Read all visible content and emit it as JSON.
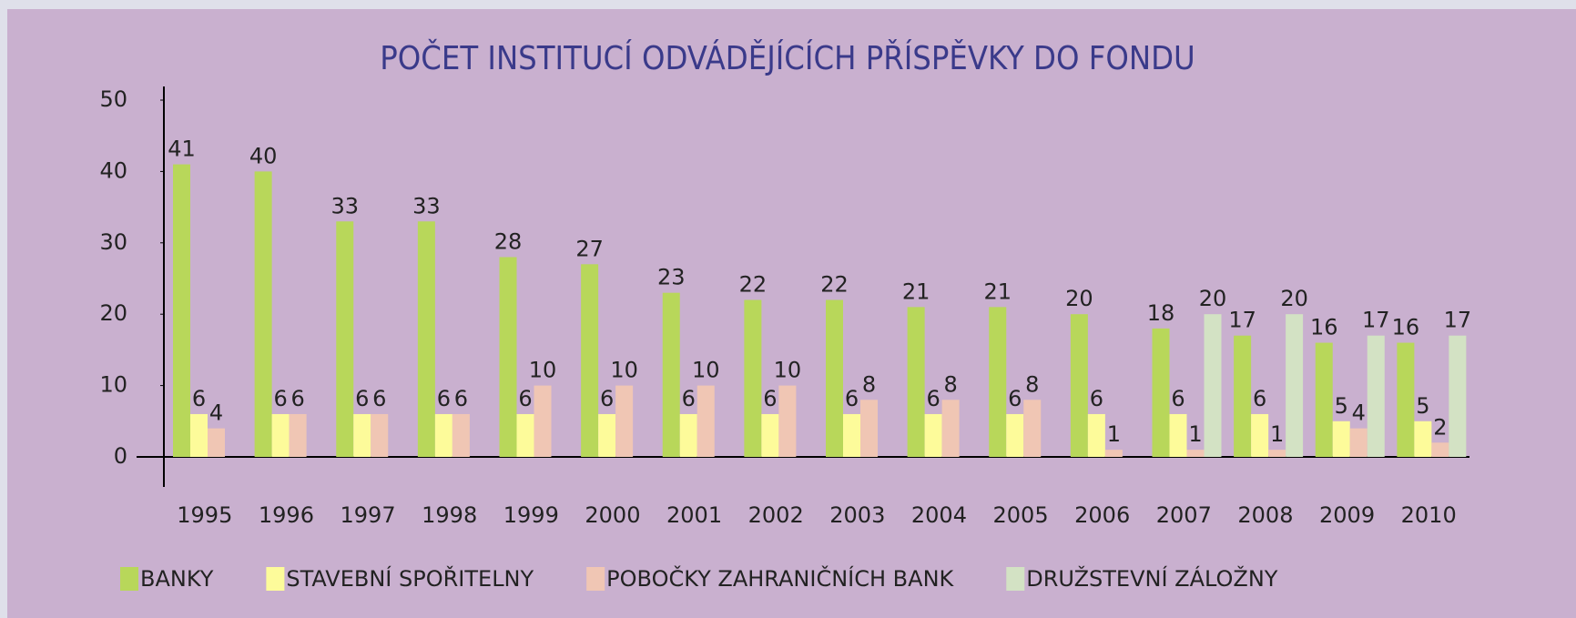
{
  "chart_data": {
    "type": "bar",
    "title": "POČET INSTITUCÍ ODVÁDĚJÍCÍCH PŘÍSPĚVKY DO FONDU",
    "categories": [
      "1995",
      "1996",
      "1997",
      "1998",
      "1999",
      "2000",
      "2001",
      "2002",
      "2003",
      "2004",
      "2005",
      "2006",
      "2007",
      "2008",
      "2009",
      "2010"
    ],
    "series": [
      {
        "name": "BANKY",
        "color": "#b8d75a",
        "values": [
          41,
          40,
          33,
          33,
          28,
          27,
          23,
          22,
          22,
          21,
          21,
          20,
          18,
          17,
          16,
          16
        ]
      },
      {
        "name": "STAVEBNÍ SPOŘITELNY",
        "color": "#fdfb9a",
        "values": [
          6,
          6,
          6,
          6,
          6,
          6,
          6,
          6,
          6,
          6,
          6,
          6,
          6,
          6,
          5,
          5
        ]
      },
      {
        "name": "POBOČKY ZAHRANIČNÍCH BANK",
        "color": "#f0c6b4",
        "values": [
          4,
          6,
          6,
          6,
          10,
          10,
          10,
          10,
          8,
          8,
          8,
          1,
          1,
          1,
          4,
          2
        ]
      },
      {
        "name": "DRUŽSTEVNÍ ZÁLOŽNY",
        "color": "#d3e2c4",
        "values": [
          null,
          null,
          null,
          null,
          null,
          null,
          null,
          null,
          null,
          null,
          null,
          null,
          20,
          20,
          17,
          17
        ]
      }
    ],
    "ylim": [
      0,
      50
    ],
    "yticks": [
      0,
      10,
      20,
      30,
      40,
      50
    ],
    "legend": "bottom"
  }
}
